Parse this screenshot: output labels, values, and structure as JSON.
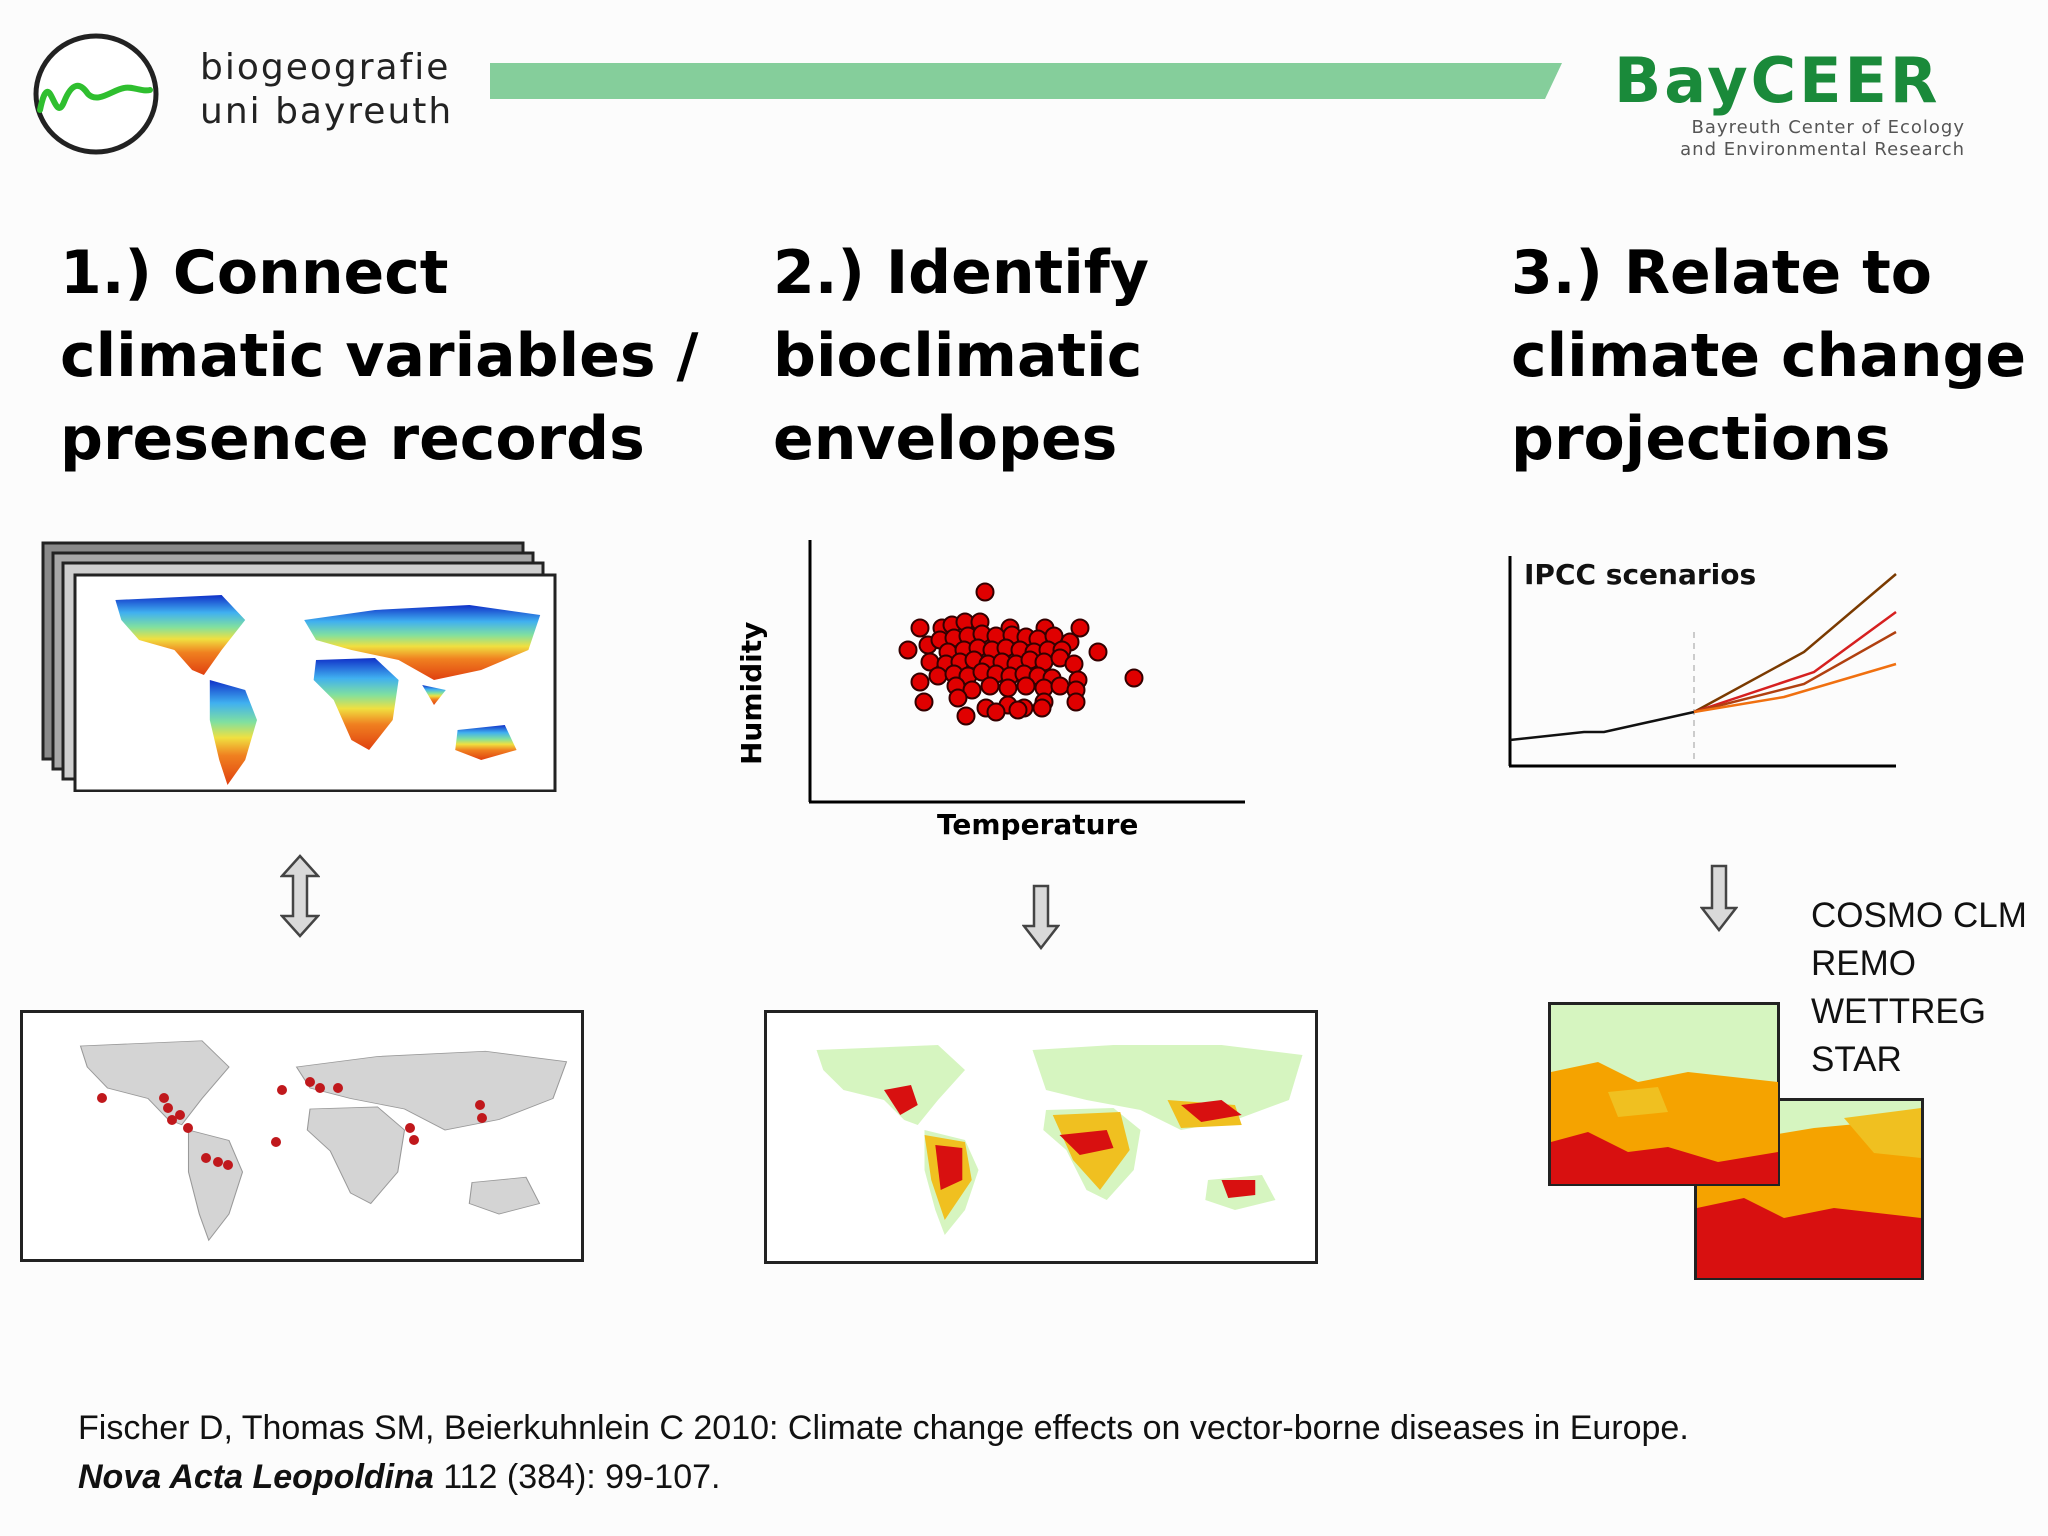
{
  "header": {
    "logo_line1": "biogeografie",
    "logo_line2": "uni bayreuth",
    "bayceer_word": "BayCEER",
    "bayceer_sub1": "Bayreuth Center of Ecology",
    "bayceer_sub2": "and Environmental Research",
    "bar_color": "#85ce9b"
  },
  "steps": [
    {
      "line1": "1.) Connect",
      "line2": "climatic variables /",
      "line3": "presence records"
    },
    {
      "line1": "2.) Identify",
      "line2": "bioclimatic",
      "line3": "envelopes"
    },
    {
      "line1": "3.) Relate to",
      "line2": "climate change",
      "line3": "projections"
    }
  ],
  "envelope_chart": {
    "xlabel": "Temperature",
    "ylabel": "Humidity",
    "point_color": "#e00000"
  },
  "ipcc_chart": {
    "title": "IPCC scenarios",
    "line_colors": [
      "#7a3a00",
      "#d62020",
      "#b04010",
      "#f07010"
    ]
  },
  "models": [
    "COSMO CLM",
    "REMO",
    "WETTREG",
    "STAR"
  ],
  "reference": {
    "line1": "Fischer D, Thomas SM, Beierkuhnlein C 2010: Climate change effects on vector-borne diseases in Europe.",
    "journal": "Nova Acta Leopoldina",
    "rest": " 112 (384): 99-107."
  }
}
